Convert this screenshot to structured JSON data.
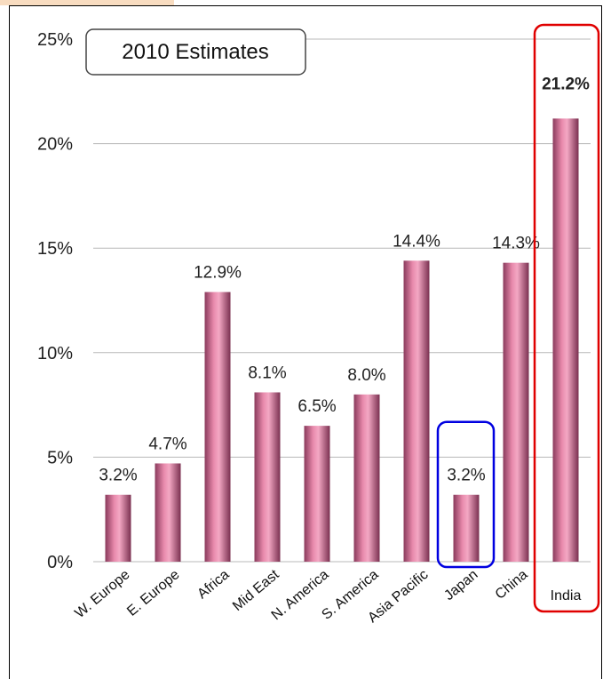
{
  "chart_data": {
    "type": "bar",
    "title": "2010 Estimates",
    "categories": [
      "W. Europe",
      "E. Europe",
      "Africa",
      "Mid East",
      "N. America",
      "S. America",
      "Asia Pacific",
      "Japan",
      "China",
      "India"
    ],
    "values": [
      3.2,
      4.7,
      12.9,
      8.1,
      6.5,
      8.0,
      14.4,
      3.2,
      14.3,
      21.2
    ],
    "value_labels": [
      "3.2%",
      "4.7%",
      "12.9%",
      "8.1%",
      "6.5%",
      "8.0%",
      "14.4%",
      "3.2%",
      "14.3%",
      "21.2%"
    ],
    "yticks": [
      0,
      5,
      10,
      15,
      20,
      25
    ],
    "ytick_labels": [
      "0%",
      "5%",
      "10%",
      "15%",
      "20%",
      "25%"
    ],
    "ylim": [
      0,
      25
    ],
    "xlabel": "",
    "ylabel": "",
    "grid": true,
    "highlights": [
      {
        "category": "India",
        "color": "#e00000"
      },
      {
        "category": "Japan",
        "color": "#0000e0"
      }
    ],
    "bar_color": "#e88aac"
  }
}
